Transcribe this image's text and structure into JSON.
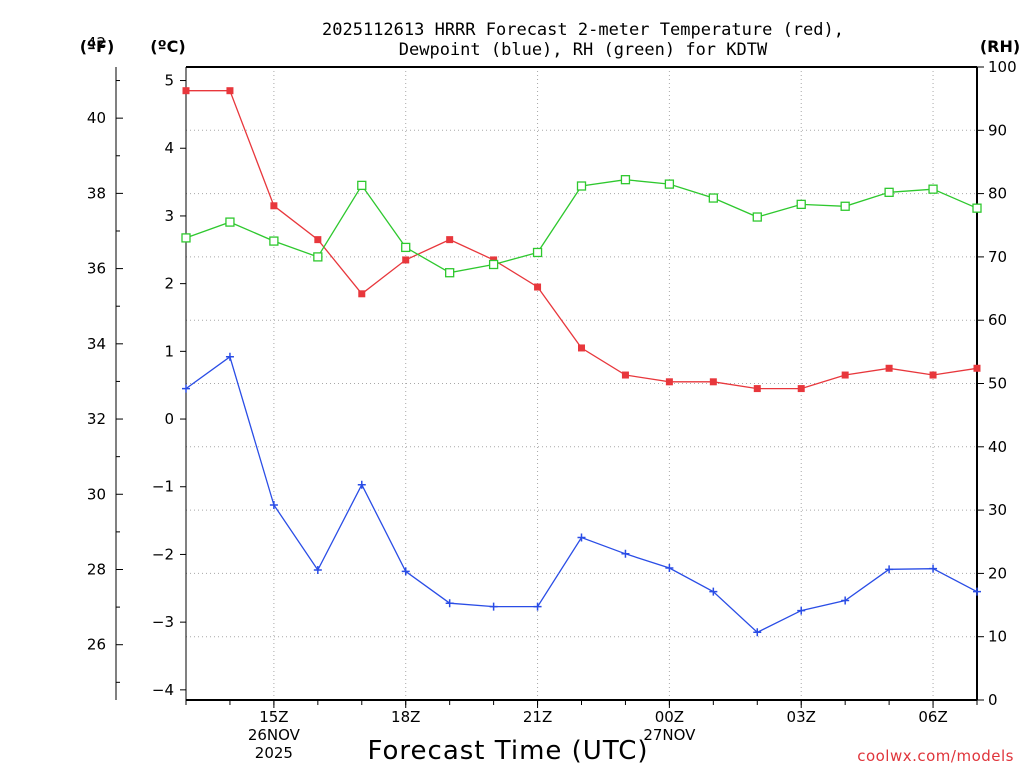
{
  "chart_data": {
    "type": "line",
    "title": "2025112613 HRRR Forecast 2-meter Temperature (red),",
    "title_line2": "Dewpoint (blue), RH (green) for KDTW",
    "xlabel": "Forecast Time (UTC)",
    "credit": "coolwx.com/models",
    "units": {
      "f": "(ºF)",
      "c": "(ºC)",
      "rh": "(RH)"
    },
    "x_hours": [
      0,
      1,
      2,
      3,
      4,
      5,
      6,
      7,
      8,
      9,
      10,
      11,
      12,
      13,
      14,
      15,
      16,
      17,
      18
    ],
    "xlim": [
      0,
      18
    ],
    "x_ticks": [
      {
        "hour": 2,
        "label": "15Z",
        "sub1": "26NOV",
        "sub2": "2025"
      },
      {
        "hour": 5,
        "label": "18Z",
        "sub1": "",
        "sub2": ""
      },
      {
        "hour": 8,
        "label": "21Z",
        "sub1": "",
        "sub2": ""
      },
      {
        "hour": 11,
        "label": "00Z",
        "sub1": "27NOV",
        "sub2": ""
      },
      {
        "hour": 14,
        "label": "03Z",
        "sub1": "",
        "sub2": ""
      },
      {
        "hour": 17,
        "label": "06Z",
        "sub1": "",
        "sub2": ""
      }
    ],
    "y_celsius": {
      "lim": [
        -4.15,
        5.2
      ],
      "ticks": [
        -4,
        -3,
        -2,
        -1,
        0,
        1,
        2,
        3,
        4,
        5
      ]
    },
    "y_fahrenheit": {
      "ticks": [
        26,
        28,
        30,
        32,
        34,
        36,
        38,
        40,
        42
      ]
    },
    "y_rh": {
      "lim": [
        0,
        100
      ],
      "ticks": [
        0,
        10,
        20,
        30,
        40,
        50,
        60,
        70,
        80,
        90,
        100
      ]
    },
    "series": [
      {
        "name": "2-meter Temperature",
        "unit": "C",
        "color": "#e8373c",
        "marker": "filled-square",
        "values": [
          4.85,
          4.85,
          3.15,
          2.65,
          1.85,
          2.35,
          2.65,
          2.35,
          1.95,
          1.05,
          0.65,
          0.55,
          0.55,
          0.45,
          0.45,
          0.65,
          0.75,
          0.65,
          0.75
        ]
      },
      {
        "name": "Dewpoint",
        "unit": "C",
        "color": "#2a4de6",
        "marker": "plus",
        "values": [
          0.45,
          0.92,
          -1.27,
          -2.23,
          -0.97,
          -2.25,
          -2.72,
          -2.77,
          -2.77,
          -1.75,
          -1.99,
          -2.2,
          -2.55,
          -3.15,
          -2.83,
          -2.68,
          -2.22,
          -2.21,
          -2.55
        ]
      },
      {
        "name": "Relative Humidity",
        "unit": "%",
        "color": "#2ec82e",
        "marker": "open-square",
        "values": [
          73,
          75.5,
          72.5,
          70,
          81.3,
          71.5,
          67.5,
          68.8,
          70.7,
          81.2,
          82.2,
          81.5,
          79.3,
          76.3,
          78.3,
          78,
          80.2,
          80.7,
          77.7
        ]
      }
    ]
  }
}
